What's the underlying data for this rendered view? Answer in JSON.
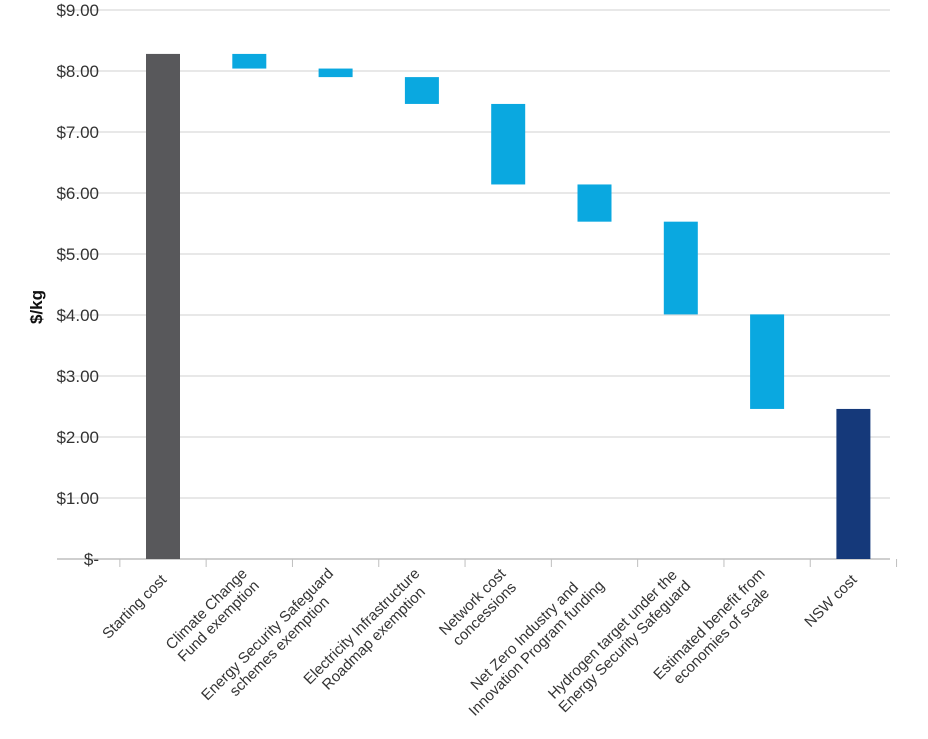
{
  "chart_data": {
    "type": "bar",
    "subtype": "waterfall",
    "title": "",
    "xlabel": "",
    "ylabel": "$/kg",
    "ylim": [
      0,
      9
    ],
    "yticks": [
      {
        "value": 0,
        "label": "$-"
      },
      {
        "value": 1,
        "label": "$1.00"
      },
      {
        "value": 2,
        "label": "$2.00"
      },
      {
        "value": 3,
        "label": "$3.00"
      },
      {
        "value": 4,
        "label": "$4.00"
      },
      {
        "value": 5,
        "label": "$5.00"
      },
      {
        "value": 6,
        "label": "$6.00"
      },
      {
        "value": 7,
        "label": "$7.00"
      },
      {
        "value": 8,
        "label": "$8.00"
      },
      {
        "value": 9,
        "label": "$9.00"
      }
    ],
    "grid": true,
    "legend": "none",
    "categories": [
      [
        "Starting cost"
      ],
      [
        "Climate Change",
        "Fund exemption"
      ],
      [
        "Energy Security Safeguard",
        "schemes exemption"
      ],
      [
        "Electricity Infrastructure",
        "Roadmap exemption"
      ],
      [
        "Network cost",
        "concessions"
      ],
      [
        "Net Zero Industry and",
        "Innovation Program funding"
      ],
      [
        "Hydrogen target under the",
        "Energy Security Safeguard"
      ],
      [
        "Estimated benefit from",
        "economies of scale"
      ],
      [
        "NSW cost"
      ]
    ],
    "bars": [
      {
        "kind": "total",
        "start": 0,
        "end": 8.28
      },
      {
        "kind": "decrease",
        "start": 8.28,
        "end": 8.04
      },
      {
        "kind": "decrease",
        "start": 8.04,
        "end": 7.9
      },
      {
        "kind": "decrease",
        "start": 7.9,
        "end": 7.46
      },
      {
        "kind": "decrease",
        "start": 7.46,
        "end": 6.14
      },
      {
        "kind": "decrease",
        "start": 6.14,
        "end": 5.53
      },
      {
        "kind": "decrease",
        "start": 5.53,
        "end": 4.01
      },
      {
        "kind": "decrease",
        "start": 4.01,
        "end": 2.46
      },
      {
        "kind": "total",
        "start": 0,
        "end": 2.46
      }
    ],
    "colors": {
      "start_total": "#58585b",
      "decrease": "#0aa8e0",
      "end_total": "#15397a",
      "grid": "#d9d9d9",
      "axis": "#bfbfbf"
    }
  }
}
